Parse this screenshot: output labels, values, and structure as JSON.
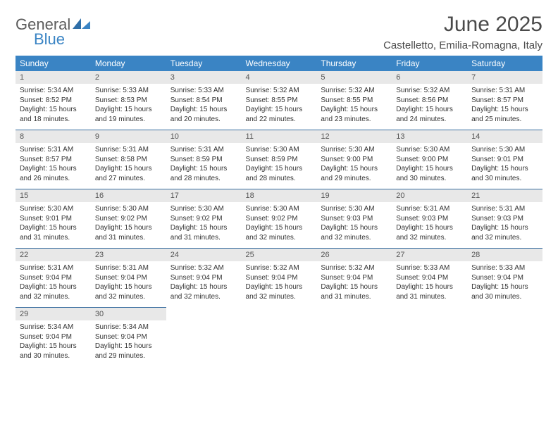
{
  "logo": {
    "text1": "General",
    "text2": "Blue",
    "color1": "#5c5c5c",
    "color2": "#3a84c4"
  },
  "title": "June 2025",
  "location": "Castelletto, Emilia-Romagna, Italy",
  "header_bg": "#3a84c4",
  "header_fg": "#ffffff",
  "daynum_bg": "#e8e8e8",
  "row_border": "#3a6fa0",
  "weekdays": [
    "Sunday",
    "Monday",
    "Tuesday",
    "Wednesday",
    "Thursday",
    "Friday",
    "Saturday"
  ],
  "days": [
    {
      "n": "1",
      "sr": "Sunrise: 5:34 AM",
      "ss": "Sunset: 8:52 PM",
      "d1": "Daylight: 15 hours",
      "d2": "and 18 minutes."
    },
    {
      "n": "2",
      "sr": "Sunrise: 5:33 AM",
      "ss": "Sunset: 8:53 PM",
      "d1": "Daylight: 15 hours",
      "d2": "and 19 minutes."
    },
    {
      "n": "3",
      "sr": "Sunrise: 5:33 AM",
      "ss": "Sunset: 8:54 PM",
      "d1": "Daylight: 15 hours",
      "d2": "and 20 minutes."
    },
    {
      "n": "4",
      "sr": "Sunrise: 5:32 AM",
      "ss": "Sunset: 8:55 PM",
      "d1": "Daylight: 15 hours",
      "d2": "and 22 minutes."
    },
    {
      "n": "5",
      "sr": "Sunrise: 5:32 AM",
      "ss": "Sunset: 8:55 PM",
      "d1": "Daylight: 15 hours",
      "d2": "and 23 minutes."
    },
    {
      "n": "6",
      "sr": "Sunrise: 5:32 AM",
      "ss": "Sunset: 8:56 PM",
      "d1": "Daylight: 15 hours",
      "d2": "and 24 minutes."
    },
    {
      "n": "7",
      "sr": "Sunrise: 5:31 AM",
      "ss": "Sunset: 8:57 PM",
      "d1": "Daylight: 15 hours",
      "d2": "and 25 minutes."
    },
    {
      "n": "8",
      "sr": "Sunrise: 5:31 AM",
      "ss": "Sunset: 8:57 PM",
      "d1": "Daylight: 15 hours",
      "d2": "and 26 minutes."
    },
    {
      "n": "9",
      "sr": "Sunrise: 5:31 AM",
      "ss": "Sunset: 8:58 PM",
      "d1": "Daylight: 15 hours",
      "d2": "and 27 minutes."
    },
    {
      "n": "10",
      "sr": "Sunrise: 5:31 AM",
      "ss": "Sunset: 8:59 PM",
      "d1": "Daylight: 15 hours",
      "d2": "and 28 minutes."
    },
    {
      "n": "11",
      "sr": "Sunrise: 5:30 AM",
      "ss": "Sunset: 8:59 PM",
      "d1": "Daylight: 15 hours",
      "d2": "and 28 minutes."
    },
    {
      "n": "12",
      "sr": "Sunrise: 5:30 AM",
      "ss": "Sunset: 9:00 PM",
      "d1": "Daylight: 15 hours",
      "d2": "and 29 minutes."
    },
    {
      "n": "13",
      "sr": "Sunrise: 5:30 AM",
      "ss": "Sunset: 9:00 PM",
      "d1": "Daylight: 15 hours",
      "d2": "and 30 minutes."
    },
    {
      "n": "14",
      "sr": "Sunrise: 5:30 AM",
      "ss": "Sunset: 9:01 PM",
      "d1": "Daylight: 15 hours",
      "d2": "and 30 minutes."
    },
    {
      "n": "15",
      "sr": "Sunrise: 5:30 AM",
      "ss": "Sunset: 9:01 PM",
      "d1": "Daylight: 15 hours",
      "d2": "and 31 minutes."
    },
    {
      "n": "16",
      "sr": "Sunrise: 5:30 AM",
      "ss": "Sunset: 9:02 PM",
      "d1": "Daylight: 15 hours",
      "d2": "and 31 minutes."
    },
    {
      "n": "17",
      "sr": "Sunrise: 5:30 AM",
      "ss": "Sunset: 9:02 PM",
      "d1": "Daylight: 15 hours",
      "d2": "and 31 minutes."
    },
    {
      "n": "18",
      "sr": "Sunrise: 5:30 AM",
      "ss": "Sunset: 9:02 PM",
      "d1": "Daylight: 15 hours",
      "d2": "and 32 minutes."
    },
    {
      "n": "19",
      "sr": "Sunrise: 5:30 AM",
      "ss": "Sunset: 9:03 PM",
      "d1": "Daylight: 15 hours",
      "d2": "and 32 minutes."
    },
    {
      "n": "20",
      "sr": "Sunrise: 5:31 AM",
      "ss": "Sunset: 9:03 PM",
      "d1": "Daylight: 15 hours",
      "d2": "and 32 minutes."
    },
    {
      "n": "21",
      "sr": "Sunrise: 5:31 AM",
      "ss": "Sunset: 9:03 PM",
      "d1": "Daylight: 15 hours",
      "d2": "and 32 minutes."
    },
    {
      "n": "22",
      "sr": "Sunrise: 5:31 AM",
      "ss": "Sunset: 9:04 PM",
      "d1": "Daylight: 15 hours",
      "d2": "and 32 minutes."
    },
    {
      "n": "23",
      "sr": "Sunrise: 5:31 AM",
      "ss": "Sunset: 9:04 PM",
      "d1": "Daylight: 15 hours",
      "d2": "and 32 minutes."
    },
    {
      "n": "24",
      "sr": "Sunrise: 5:32 AM",
      "ss": "Sunset: 9:04 PM",
      "d1": "Daylight: 15 hours",
      "d2": "and 32 minutes."
    },
    {
      "n": "25",
      "sr": "Sunrise: 5:32 AM",
      "ss": "Sunset: 9:04 PM",
      "d1": "Daylight: 15 hours",
      "d2": "and 32 minutes."
    },
    {
      "n": "26",
      "sr": "Sunrise: 5:32 AM",
      "ss": "Sunset: 9:04 PM",
      "d1": "Daylight: 15 hours",
      "d2": "and 31 minutes."
    },
    {
      "n": "27",
      "sr": "Sunrise: 5:33 AM",
      "ss": "Sunset: 9:04 PM",
      "d1": "Daylight: 15 hours",
      "d2": "and 31 minutes."
    },
    {
      "n": "28",
      "sr": "Sunrise: 5:33 AM",
      "ss": "Sunset: 9:04 PM",
      "d1": "Daylight: 15 hours",
      "d2": "and 30 minutes."
    },
    {
      "n": "29",
      "sr": "Sunrise: 5:34 AM",
      "ss": "Sunset: 9:04 PM",
      "d1": "Daylight: 15 hours",
      "d2": "and 30 minutes."
    },
    {
      "n": "30",
      "sr": "Sunrise: 5:34 AM",
      "ss": "Sunset: 9:04 PM",
      "d1": "Daylight: 15 hours",
      "d2": "and 29 minutes."
    }
  ]
}
